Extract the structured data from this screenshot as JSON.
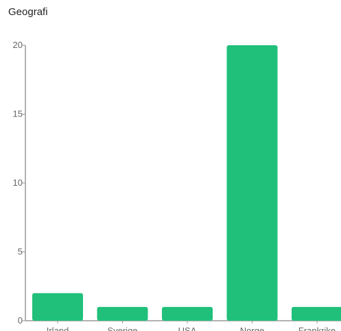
{
  "title": "Geografi",
  "chart_data": {
    "type": "bar",
    "title": "Geografi",
    "xlabel": "",
    "ylabel": "",
    "categories": [
      "Irland",
      "Sverige",
      "USA",
      "Norge",
      "Frankrike"
    ],
    "values": [
      2,
      1,
      1,
      20,
      1
    ],
    "ylim": [
      0,
      20
    ],
    "yticks": [
      0,
      5,
      10,
      15,
      20
    ],
    "grid": false,
    "legend": "none",
    "bar_color": "#20c07a",
    "axis_color": "#999999"
  }
}
